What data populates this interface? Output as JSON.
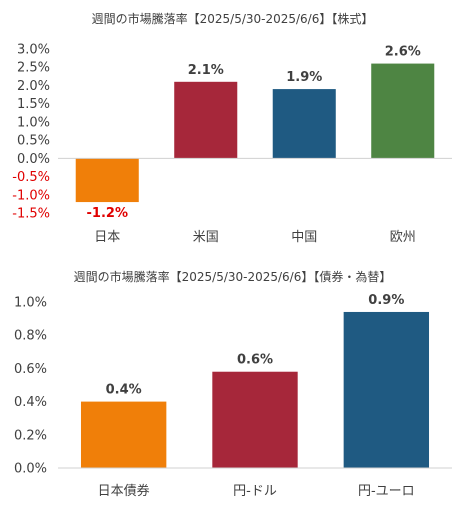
{
  "chart_data": [
    {
      "type": "bar",
      "title": "週間の市場騰落率【2025/5/30-2025/6/6】【株式】",
      "categories": [
        "日本",
        "米国",
        "中国",
        "欧州"
      ],
      "values": [
        -1.2,
        2.1,
        1.9,
        2.6
      ],
      "value_labels": [
        "-1.2%",
        "2.1%",
        "1.9%",
        "2.6%"
      ],
      "colors": [
        "#f07f09",
        "#a6273a",
        "#1f5a82",
        "#4e8543"
      ],
      "ylim": [
        -1.5,
        3.0
      ],
      "yticks": [
        3.0,
        2.5,
        2.0,
        1.5,
        1.0,
        0.5,
        0.0,
        -0.5,
        -1.0,
        -1.5
      ],
      "ytick_labels": [
        "3.0%",
        "2.5%",
        "2.0%",
        "1.5%",
        "1.0%",
        "0.5%",
        "0.0%",
        "-0.5%",
        "-1.0%",
        "-1.5%"
      ],
      "negative_color": "#e00000",
      "xlabel": "",
      "ylabel": "",
      "grid": false,
      "legend": false
    },
    {
      "type": "bar",
      "title": "週間の市場騰落率【2025/5/30-2025/6/6】【債券・為替】",
      "categories": [
        "日本債券",
        "円-ドル",
        "円-ユーロ"
      ],
      "values": [
        0.4,
        0.58,
        0.94
      ],
      "value_labels": [
        "0.4%",
        "0.6%",
        "0.9%"
      ],
      "colors": [
        "#f07f09",
        "#a6273a",
        "#1f5a82"
      ],
      "ylim": [
        0.0,
        1.0
      ],
      "yticks": [
        1.0,
        0.8,
        0.6,
        0.4,
        0.2,
        0.0
      ],
      "ytick_labels": [
        "1.0%",
        "0.8%",
        "0.6%",
        "0.4%",
        "0.2%",
        "0.0%"
      ],
      "xlabel": "",
      "ylabel": "",
      "grid": false,
      "legend": false
    }
  ]
}
